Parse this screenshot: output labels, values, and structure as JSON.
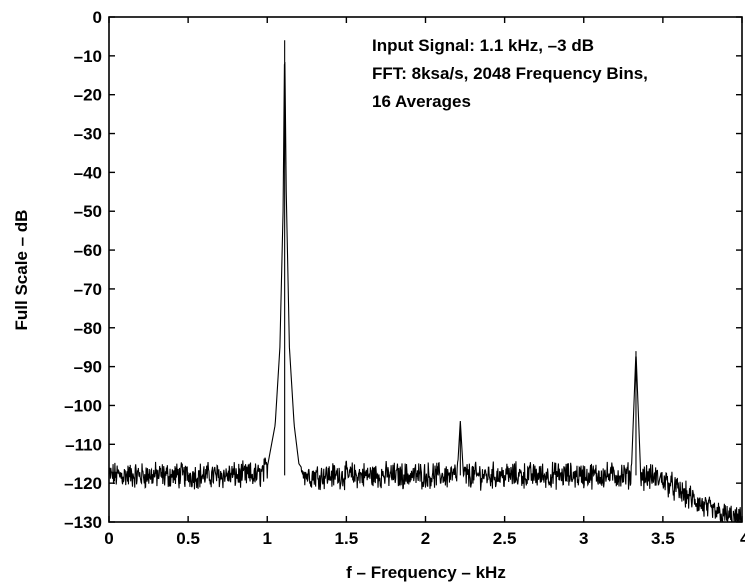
{
  "chart_data": {
    "type": "line",
    "title": "",
    "xlabel": "f – Frequency – kHz",
    "ylabel": "Full Scale – dB",
    "xlim": [
      0,
      4
    ],
    "ylim": [
      -130,
      0
    ],
    "x_ticks": [
      "0",
      "0.5",
      "1",
      "1.5",
      "2",
      "2.5",
      "3",
      "3.5",
      "4"
    ],
    "y_ticks": [
      "0",
      "–10",
      "–20",
      "–30",
      "–40",
      "–50",
      "–60",
      "–70",
      "–80",
      "–90",
      "–100",
      "–110",
      "–120",
      "–130"
    ],
    "grid": false,
    "legend": "none",
    "annotation_lines": [
      "Input Signal: 1.1 kHz, –3 dB",
      "FFT: 8ksa/s, 2048 Frequency Bins,",
      "16 Averages"
    ],
    "series": [
      {
        "line_color": "#000000",
        "noise_floor_db": -118,
        "points": [
          {
            "x": 0.0,
            "y": -118
          },
          {
            "x": 0.5,
            "y": -118
          },
          {
            "x": 0.95,
            "y": -118
          },
          {
            "x": 1.0,
            "y": -116
          },
          {
            "x": 1.05,
            "y": -105
          },
          {
            "x": 1.08,
            "y": -85
          },
          {
            "x": 1.1,
            "y": -50
          },
          {
            "x": 1.11,
            "y": -6
          },
          {
            "x": 1.12,
            "y": -45
          },
          {
            "x": 1.14,
            "y": -85
          },
          {
            "x": 1.17,
            "y": -105
          },
          {
            "x": 1.2,
            "y": -115
          },
          {
            "x": 1.25,
            "y": -118
          },
          {
            "x": 2.2,
            "y": -118
          },
          {
            "x": 2.22,
            "y": -104
          },
          {
            "x": 2.24,
            "y": -118
          },
          {
            "x": 3.3,
            "y": -118
          },
          {
            "x": 3.33,
            "y": -86
          },
          {
            "x": 3.36,
            "y": -118
          },
          {
            "x": 3.5,
            "y": -119
          },
          {
            "x": 3.6,
            "y": -122
          },
          {
            "x": 3.8,
            "y": -127
          },
          {
            "x": 4.0,
            "y": -130
          }
        ]
      }
    ]
  }
}
